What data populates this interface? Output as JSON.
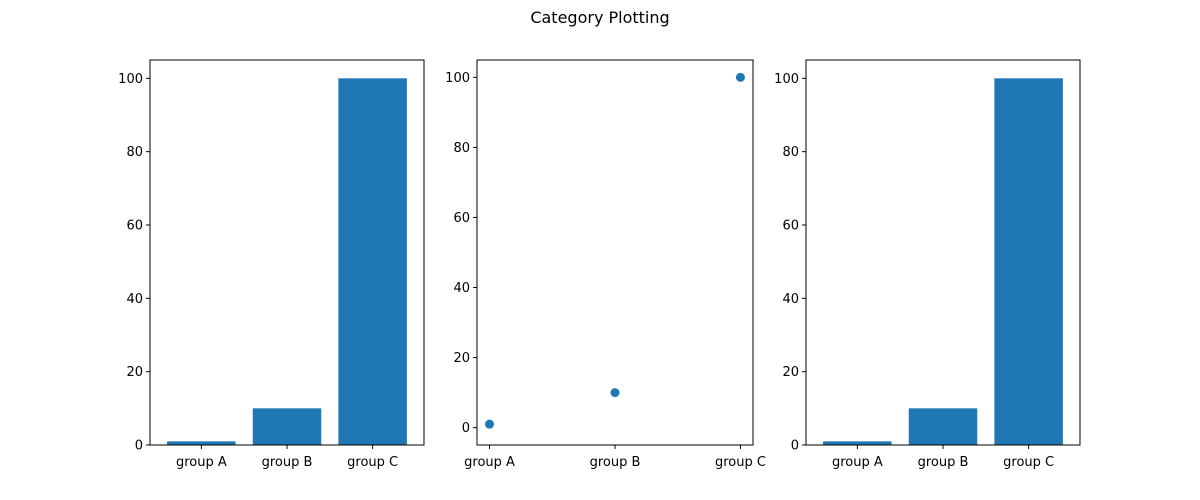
{
  "figure": {
    "title": "Category Plotting"
  },
  "colors": {
    "mark": "#1f77b4",
    "axis": "#000000",
    "background": "#ffffff"
  },
  "chart_data": [
    {
      "type": "bar",
      "categories": [
        "group A",
        "group B",
        "group C"
      ],
      "values": [
        1,
        10,
        100
      ],
      "yticks": [
        0,
        20,
        40,
        60,
        80,
        100
      ],
      "ylim": [
        0,
        105
      ],
      "grid": false
    },
    {
      "type": "scatter",
      "categories": [
        "group A",
        "group B",
        "group C"
      ],
      "values": [
        1,
        10,
        100
      ],
      "yticks": [
        0,
        20,
        40,
        60,
        80,
        100
      ],
      "ylim": [
        -4.95,
        104.95
      ],
      "grid": false
    },
    {
      "type": "bar",
      "categories": [
        "group A",
        "group B",
        "group C"
      ],
      "values": [
        1,
        10,
        100
      ],
      "yticks": [
        0,
        20,
        40,
        60,
        80,
        100
      ],
      "ylim": [
        0,
        105
      ],
      "grid": false
    }
  ]
}
